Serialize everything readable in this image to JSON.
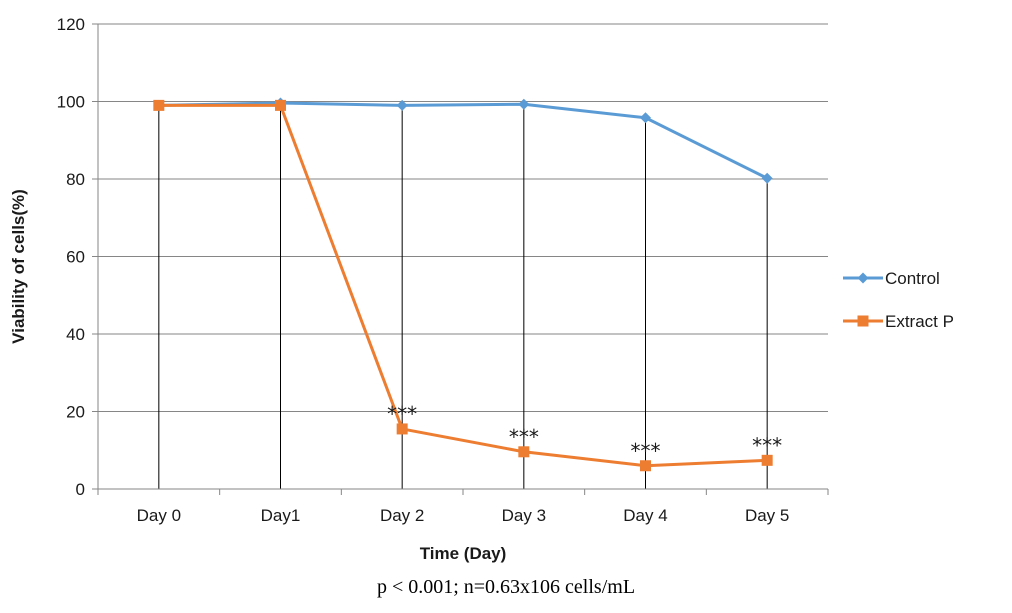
{
  "chart_data": {
    "type": "line",
    "categories": [
      "Day 0",
      "Day1",
      "Day 2",
      "Day 3",
      "Day 4",
      "Day 5"
    ],
    "series": [
      {
        "name": "Control",
        "values": [
          99,
          99.6,
          99,
          99.3,
          95.8,
          80.2
        ],
        "color": "#5b9bd5",
        "marker": "diamond"
      },
      {
        "name": "Extract P",
        "values": [
          99,
          99,
          15.5,
          9.6,
          6,
          7.4
        ],
        "color": "#ed7d31",
        "marker": "square"
      }
    ],
    "annotations": [
      {
        "category": "Day 2",
        "text": "***"
      },
      {
        "category": "Day 3",
        "text": "***"
      },
      {
        "category": "Day 4",
        "text": "***"
      },
      {
        "category": "Day 5",
        "text": "***"
      }
    ],
    "xlabel": "Time (Day)",
    "ylabel": "Viability of cells(%)",
    "ylim": [
      0,
      120
    ],
    "yticks": [
      0,
      20,
      40,
      60,
      80,
      100,
      120
    ],
    "grid": true,
    "drop_lines": true,
    "legend_position": "right"
  },
  "caption": "p < 0.001; n=0.63x106 cells/mL"
}
